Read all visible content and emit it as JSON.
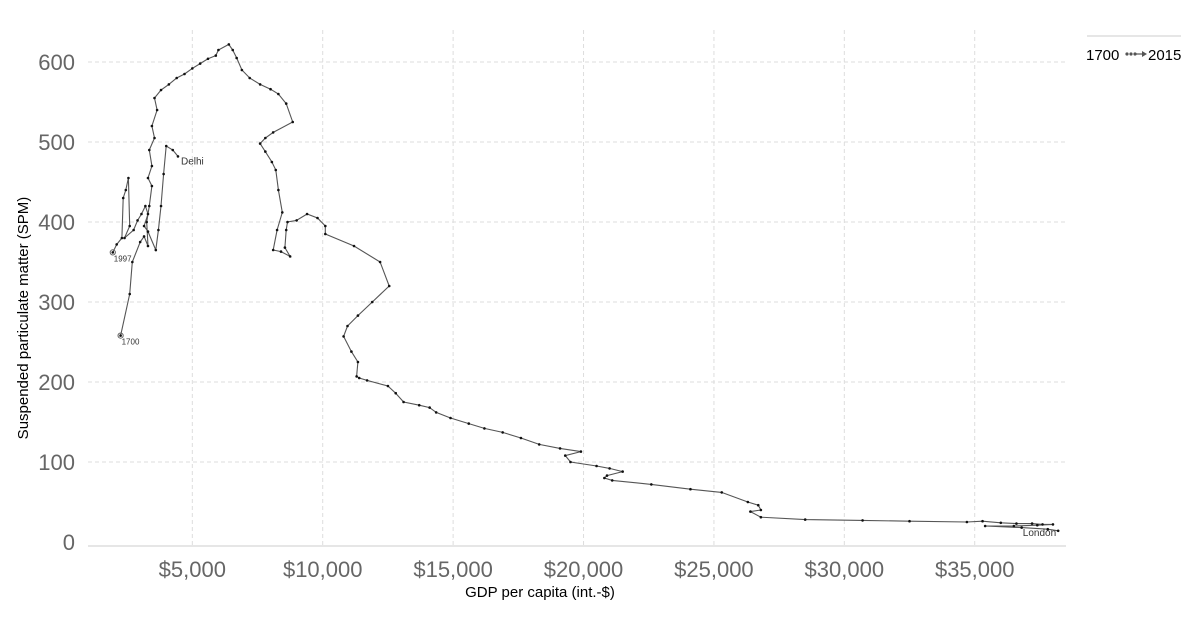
{
  "chart_data": {
    "type": "line",
    "xlabel": "GDP per capita (int.-$)",
    "ylabel": "Suspended particulate matter (SPM)",
    "xlim": [
      1000,
      38500
    ],
    "ylim": [
      -5,
      640
    ],
    "x_ticks": [
      {
        "value": 5000,
        "label": "$5,000"
      },
      {
        "value": 10000,
        "label": "$10,000"
      },
      {
        "value": 15000,
        "label": "$15,000"
      },
      {
        "value": 20000,
        "label": "$20,000"
      },
      {
        "value": 25000,
        "label": "$25,000"
      },
      {
        "value": 30000,
        "label": "$30,000"
      },
      {
        "value": 35000,
        "label": "$35,000"
      }
    ],
    "y_ticks": [
      {
        "value": 0,
        "label": "0"
      },
      {
        "value": 100,
        "label": "100"
      },
      {
        "value": 200,
        "label": "200"
      },
      {
        "value": 300,
        "label": "300"
      },
      {
        "value": 400,
        "label": "400"
      },
      {
        "value": 500,
        "label": "500"
      },
      {
        "value": 600,
        "label": "600"
      }
    ],
    "grid": true,
    "legend": {
      "position": "top-right",
      "start_label": "1700",
      "end_label": "2015"
    },
    "series": [
      {
        "name": "London",
        "points": [
          [
            2250,
            258
          ],
          [
            2600,
            310
          ],
          [
            2700,
            350
          ],
          [
            3000,
            375
          ],
          [
            3150,
            382
          ],
          [
            3300,
            370
          ],
          [
            3250,
            400
          ],
          [
            3350,
            420
          ],
          [
            3450,
            445
          ],
          [
            3300,
            455
          ],
          [
            3450,
            470
          ],
          [
            3350,
            490
          ],
          [
            3550,
            505
          ],
          [
            3450,
            520
          ],
          [
            3650,
            540
          ],
          [
            3550,
            555
          ],
          [
            3800,
            565
          ],
          [
            4100,
            572
          ],
          [
            4400,
            580
          ],
          [
            4700,
            585
          ],
          [
            5000,
            592
          ],
          [
            5300,
            598
          ],
          [
            5600,
            604
          ],
          [
            5900,
            608
          ],
          [
            6000,
            615
          ],
          [
            6400,
            622
          ],
          [
            6550,
            615
          ],
          [
            6700,
            605
          ],
          [
            6900,
            590
          ],
          [
            7200,
            580
          ],
          [
            7600,
            572
          ],
          [
            8000,
            566
          ],
          [
            8300,
            560
          ],
          [
            8600,
            548
          ],
          [
            8850,
            525
          ],
          [
            8100,
            512
          ],
          [
            7800,
            505
          ],
          [
            7600,
            498
          ],
          [
            7800,
            488
          ],
          [
            8050,
            475
          ],
          [
            8200,
            465
          ],
          [
            8300,
            440
          ],
          [
            8450,
            412
          ],
          [
            8250,
            390
          ],
          [
            8100,
            365
          ],
          [
            8400,
            363
          ],
          [
            8750,
            357
          ],
          [
            8550,
            368
          ],
          [
            8600,
            390
          ],
          [
            8650,
            400
          ],
          [
            9000,
            402
          ],
          [
            9400,
            410
          ],
          [
            9800,
            405
          ],
          [
            10100,
            395
          ],
          [
            10100,
            385
          ],
          [
            11200,
            370
          ],
          [
            12200,
            350
          ],
          [
            12550,
            320
          ],
          [
            11900,
            300
          ],
          [
            11350,
            283
          ],
          [
            10950,
            270
          ],
          [
            10800,
            257
          ],
          [
            11100,
            238
          ],
          [
            11350,
            225
          ],
          [
            11300,
            207
          ],
          [
            11400,
            205
          ],
          [
            11700,
            202
          ],
          [
            12500,
            195
          ],
          [
            12800,
            186
          ],
          [
            13100,
            175
          ],
          [
            13700,
            171
          ],
          [
            14100,
            168
          ],
          [
            14350,
            162
          ],
          [
            14900,
            155
          ],
          [
            15600,
            148
          ],
          [
            16200,
            142
          ],
          [
            16900,
            137
          ],
          [
            17600,
            130
          ],
          [
            18300,
            122
          ],
          [
            19100,
            117
          ],
          [
            19900,
            113
          ],
          [
            19300,
            108
          ],
          [
            19500,
            100
          ],
          [
            20500,
            95
          ],
          [
            21000,
            92
          ],
          [
            21500,
            88
          ],
          [
            20900,
            83
          ],
          [
            20800,
            80
          ],
          [
            21100,
            77
          ],
          [
            22600,
            72
          ],
          [
            24100,
            66
          ],
          [
            25300,
            62
          ],
          [
            26300,
            50
          ],
          [
            26700,
            46
          ],
          [
            26800,
            40
          ],
          [
            26400,
            38
          ],
          [
            26800,
            31
          ],
          [
            28500,
            28
          ],
          [
            30700,
            27
          ],
          [
            32500,
            26
          ],
          [
            34700,
            25
          ],
          [
            35300,
            26
          ],
          [
            36000,
            24
          ],
          [
            36600,
            23
          ],
          [
            37200,
            23
          ],
          [
            37600,
            22
          ],
          [
            38000,
            22
          ],
          [
            37400,
            21
          ],
          [
            36500,
            20
          ],
          [
            35400,
            20
          ],
          [
            36800,
            18
          ],
          [
            37800,
            16
          ],
          [
            38200,
            14
          ]
        ],
        "start_label": "1700",
        "end_label": "London"
      },
      {
        "name": "Delhi",
        "points": [
          [
            1950,
            362
          ],
          [
            2100,
            372
          ],
          [
            2300,
            380
          ],
          [
            2350,
            430
          ],
          [
            2450,
            440
          ],
          [
            2550,
            455
          ],
          [
            2600,
            395
          ],
          [
            2400,
            380
          ],
          [
            2750,
            390
          ],
          [
            2900,
            402
          ],
          [
            3050,
            410
          ],
          [
            3200,
            420
          ],
          [
            3300,
            410
          ],
          [
            3150,
            395
          ],
          [
            3300,
            388
          ],
          [
            3600,
            365
          ],
          [
            3700,
            390
          ],
          [
            3800,
            420
          ],
          [
            3900,
            460
          ],
          [
            4000,
            495
          ],
          [
            4250,
            490
          ],
          [
            4450,
            482
          ]
        ],
        "start_label": "1997",
        "end_label": "Delhi"
      }
    ]
  }
}
